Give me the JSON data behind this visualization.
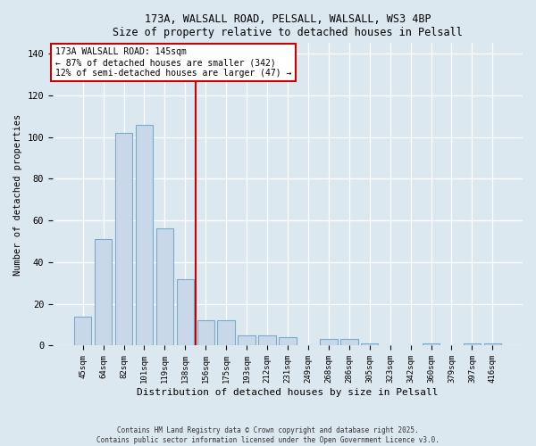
{
  "title1": "173A, WALSALL ROAD, PELSALL, WALSALL, WS3 4BP",
  "title2": "Size of property relative to detached houses in Pelsall",
  "xlabel": "Distribution of detached houses by size in Pelsall",
  "ylabel": "Number of detached properties",
  "categories": [
    "45sqm",
    "64sqm",
    "82sqm",
    "101sqm",
    "119sqm",
    "138sqm",
    "156sqm",
    "175sqm",
    "193sqm",
    "212sqm",
    "231sqm",
    "249sqm",
    "268sqm",
    "286sqm",
    "305sqm",
    "323sqm",
    "342sqm",
    "360sqm",
    "379sqm",
    "397sqm",
    "416sqm"
  ],
  "values": [
    14,
    51,
    102,
    106,
    56,
    32,
    12,
    12,
    5,
    5,
    4,
    0,
    3,
    3,
    1,
    0,
    0,
    1,
    0,
    1,
    1
  ],
  "bar_color": "#c8d8e8",
  "bar_edge_color": "#7aaac8",
  "vline_x": 5.5,
  "vline_color": "#cc0000",
  "annotation_title": "173A WALSALL ROAD: 145sqm",
  "annotation_line1": "← 87% of detached houses are smaller (342)",
  "annotation_line2": "12% of semi-detached houses are larger (47) →",
  "annotation_box_color": "#ffffff",
  "annotation_box_edge": "#cc0000",
  "ylim": [
    0,
    145
  ],
  "yticks": [
    0,
    20,
    40,
    60,
    80,
    100,
    120,
    140
  ],
  "footnote1": "Contains HM Land Registry data © Crown copyright and database right 2025.",
  "footnote2": "Contains public sector information licensed under the Open Government Licence v3.0.",
  "bg_color": "#dce8f0",
  "plot_bg_color": "#dce8f0"
}
